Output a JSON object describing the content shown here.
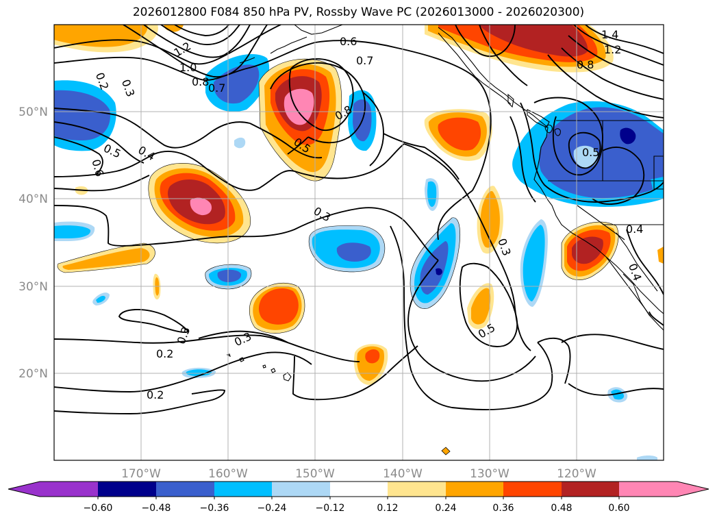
{
  "title": "2026012800 F084 850 hPa PV, Rossby Wave PC (2026013000 - 2026020300)",
  "colors": {
    "neg_060": "#9932cc",
    "neg_048": "#00008b",
    "neg_036": "#3a5fcd",
    "neg_024": "#00bfff",
    "neg_012": "#add8f5",
    "neutral": "#ffffff",
    "pos_012": "#ffe58f",
    "pos_024": "#ffa500",
    "pos_036": "#ff4500",
    "pos_048": "#b22222",
    "pos_060": "#ff86b4",
    "grid": "#b0b0b0",
    "contour": "#000000"
  },
  "longitude_labels": [
    "170°W",
    "160°W",
    "150°W",
    "140°W",
    "130°W",
    "120°W"
  ],
  "latitude_labels": [
    "50°N",
    "40°N",
    "30°N",
    "20°N"
  ],
  "colorbar": {
    "ticks": [
      "−0.60",
      "−0.48",
      "−0.36",
      "−0.24",
      "−0.12",
      "0.12",
      "0.24",
      "0.36",
      "0.48",
      "0.60"
    ]
  },
  "contour_labels": [
    "1.4",
    "1.2",
    "1.2",
    "1.0",
    "0.8",
    "0.7",
    "0.6",
    "0.7",
    "0.8",
    "0.2",
    "0.3",
    "0.5",
    "0.4",
    "0.6",
    "0.5",
    "0.3",
    "0.3",
    "0.5",
    "0.5",
    "0.8",
    "0.4",
    "0.4",
    "0.3",
    "0.3",
    "0.2",
    "0.2"
  ]
}
